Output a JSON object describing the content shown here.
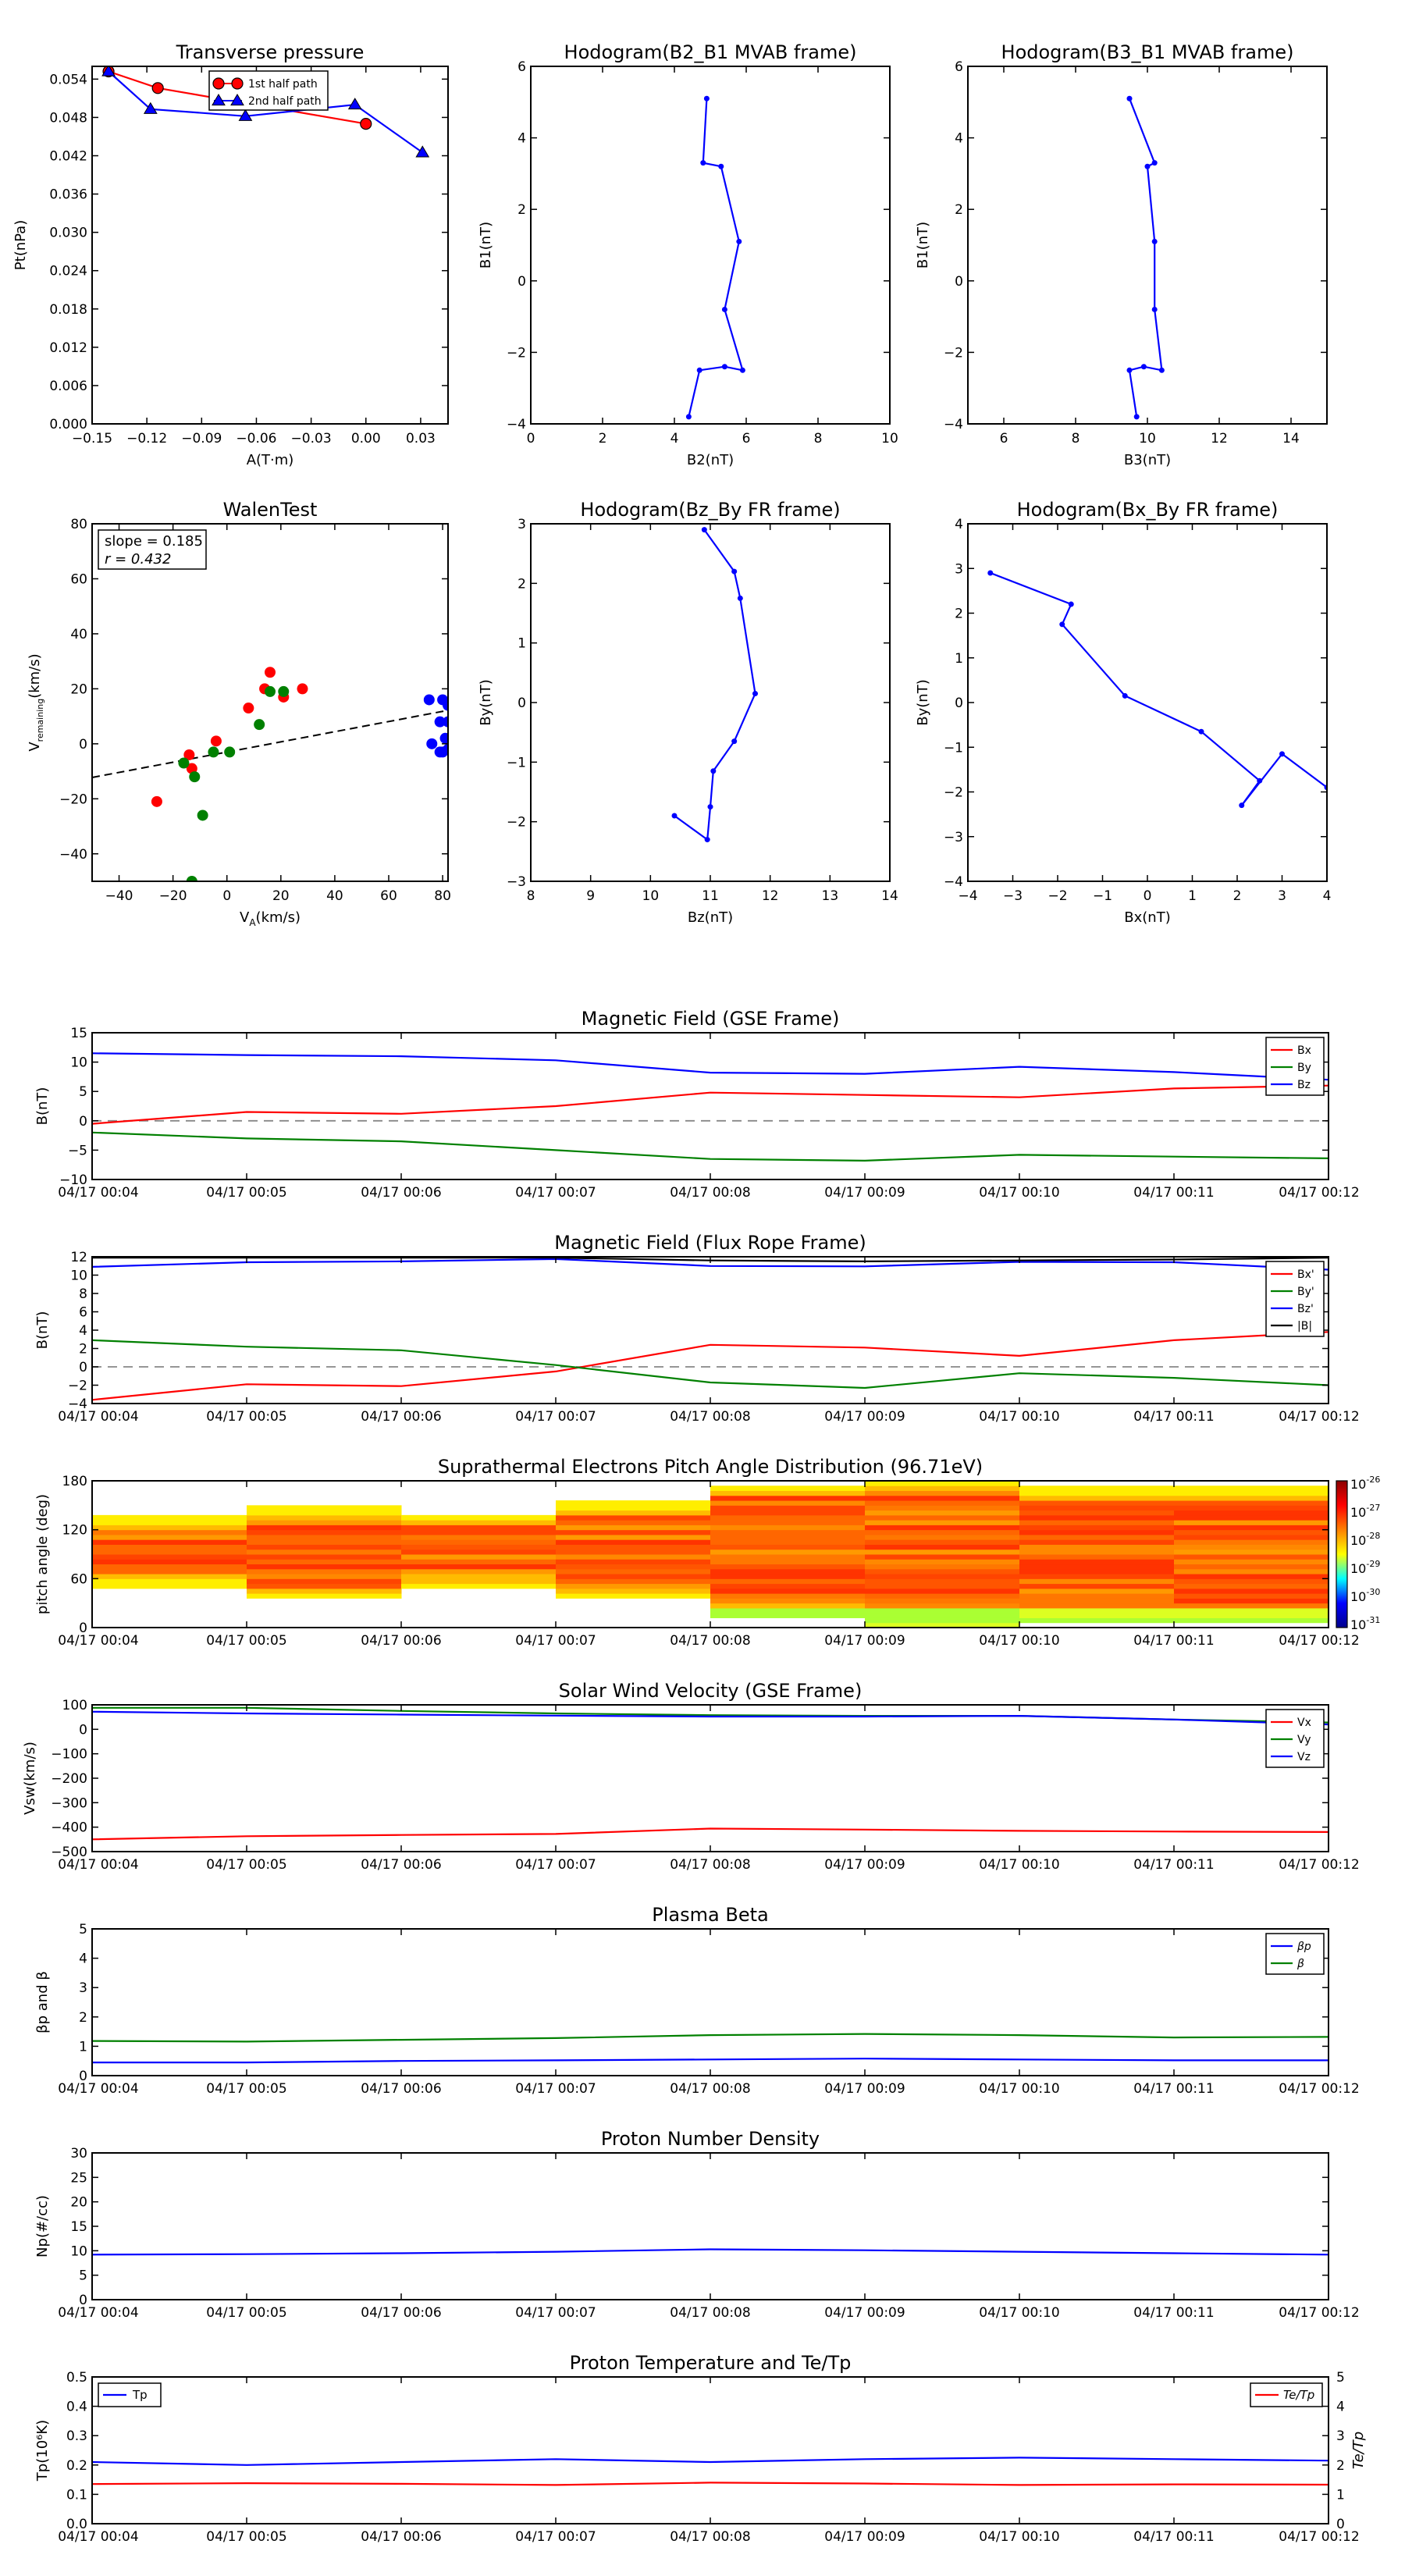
{
  "chart_data": [
    {
      "id": "tp",
      "type": "line",
      "title": "Transverse pressure",
      "xlabel": "A(T·m)",
      "ylabel": "Pt(nPa)",
      "xlim": [
        -0.15,
        0.045
      ],
      "ylim": [
        0.0,
        0.056
      ],
      "xticks": [
        "−0.15",
        "−0.12",
        "−0.09",
        "−0.06",
        "−0.03",
        "0.00",
        "0.03"
      ],
      "xtickvals": [
        -0.15,
        -0.12,
        -0.09,
        -0.06,
        -0.03,
        0.0,
        0.03
      ],
      "yticks": [
        "0.000",
        "0.006",
        "0.012",
        "0.018",
        "0.024",
        "0.030",
        "0.036",
        "0.042",
        "0.048",
        "0.054"
      ],
      "ytickvals": [
        0,
        0.006,
        0.012,
        0.018,
        0.024,
        0.03,
        0.036,
        0.042,
        0.048,
        0.054
      ],
      "legend": [
        "1st half path",
        "2nd half path"
      ],
      "series": [
        {
          "name": "1st half path",
          "color": "#ff0000",
          "marker": "circle",
          "x": [
            -0.141,
            -0.114,
            0.0
          ],
          "y": [
            0.0552,
            0.0526,
            0.047
          ]
        },
        {
          "name": "2nd half path",
          "color": "#0000ff",
          "marker": "triangle",
          "x": [
            -0.141,
            -0.118,
            -0.066,
            -0.006,
            0.031
          ],
          "y": [
            0.0552,
            0.0493,
            0.0482,
            0.05,
            0.0425
          ]
        }
      ]
    },
    {
      "id": "h1",
      "type": "line",
      "title": "Hodogram(B2_B1 MVAB frame)",
      "xlabel": "B2(nT)",
      "ylabel": "B1(nT)",
      "xlim": [
        0,
        10
      ],
      "ylim": [
        -4,
        6
      ],
      "xticks": [
        "0",
        "2",
        "4",
        "6",
        "8",
        "10"
      ],
      "xtickvals": [
        0,
        2,
        4,
        6,
        8,
        10
      ],
      "yticks": [
        "−4",
        "−2",
        "0",
        "2",
        "4",
        "6"
      ],
      "ytickvals": [
        -4,
        -2,
        0,
        2,
        4,
        6
      ],
      "series": [
        {
          "color": "#0000ff",
          "marker": "dot",
          "x": [
            4.9,
            4.8,
            5.3,
            5.8,
            5.4,
            5.9,
            5.4,
            4.7,
            4.4
          ],
          "y": [
            5.1,
            3.3,
            3.2,
            1.1,
            -0.8,
            -2.5,
            -2.4,
            -2.5,
            -3.8
          ]
        }
      ]
    },
    {
      "id": "h2",
      "type": "line",
      "title": "Hodogram(B3_B1 MVAB frame)",
      "xlabel": "B3(nT)",
      "ylabel": "B1(nT)",
      "xlim": [
        5,
        15
      ],
      "ylim": [
        -4,
        6
      ],
      "xticks": [
        "6",
        "8",
        "10",
        "12",
        "14"
      ],
      "xtickvals": [
        6,
        8,
        10,
        12,
        14
      ],
      "yticks": [
        "−4",
        "−2",
        "0",
        "2",
        "4",
        "6"
      ],
      "ytickvals": [
        -4,
        -2,
        0,
        2,
        4,
        6
      ],
      "series": [
        {
          "color": "#0000ff",
          "marker": "dot",
          "x": [
            9.5,
            10.2,
            10.0,
            10.2,
            10.2,
            10.4,
            9.9,
            9.5,
            9.7
          ],
          "y": [
            5.1,
            3.3,
            3.2,
            1.1,
            -0.8,
            -2.5,
            -2.4,
            -2.5,
            -3.8
          ]
        }
      ]
    },
    {
      "id": "walen",
      "type": "scatter",
      "title": "WalenTest",
      "xlabel": "V",
      "xlabel_sub": "A",
      "xlabel_unit": "(km/s)",
      "ylabel": "V",
      "ylabel_sub": "remaining",
      "ylabel_unit": "(km/s)",
      "xlim": [
        -50,
        82
      ],
      "ylim": [
        -50,
        80
      ],
      "xticks": [
        "−40",
        "−20",
        "0",
        "20",
        "40",
        "60",
        "80"
      ],
      "xtickvals": [
        -40,
        -20,
        0,
        20,
        40,
        60,
        80
      ],
      "yticks": [
        "−40",
        "−20",
        "0",
        "20",
        "40",
        "60",
        "80"
      ],
      "ytickvals": [
        -40,
        -20,
        0,
        20,
        40,
        60,
        80
      ],
      "annotation": [
        "slope = 0.185",
        "r = 0.432"
      ],
      "fit": {
        "slope": 0.185,
        "intercept": -3
      },
      "series": [
        {
          "color": "#ff0000",
          "x": [
            -26,
            -14,
            -13,
            -4,
            8,
            14,
            16,
            21,
            28
          ],
          "y": [
            -21,
            -4,
            -9,
            1,
            13,
            20,
            26,
            17,
            20
          ]
        },
        {
          "color": "#008000",
          "x": [
            -16,
            -12,
            -9,
            -5,
            1,
            12,
            16,
            21,
            -13
          ],
          "y": [
            -7,
            -12,
            -26,
            -3,
            -3,
            7,
            19,
            19,
            -50
          ]
        },
        {
          "color": "#0000ff",
          "x": [
            75,
            76,
            79,
            80,
            81,
            80,
            82,
            79,
            82,
            82
          ],
          "y": [
            16,
            0,
            8,
            16,
            2,
            -3,
            -2,
            -3,
            8,
            14
          ]
        }
      ]
    },
    {
      "id": "h3",
      "type": "line",
      "title": "Hodogram(Bz_By FR frame)",
      "xlabel": "Bz(nT)",
      "ylabel": "By(nT)",
      "xlim": [
        8,
        14
      ],
      "ylim": [
        -3,
        3
      ],
      "xticks": [
        "8",
        "9",
        "10",
        "11",
        "12",
        "13",
        "14"
      ],
      "xtickvals": [
        8,
        9,
        10,
        11,
        12,
        13,
        14
      ],
      "yticks": [
        "−3",
        "−2",
        "−1",
        "0",
        "1",
        "2",
        "3"
      ],
      "ytickvals": [
        -3,
        -2,
        -1,
        0,
        1,
        2,
        3
      ],
      "series": [
        {
          "color": "#0000ff",
          "marker": "dot",
          "x": [
            10.9,
            11.4,
            11.5,
            11.75,
            11.4,
            11.05,
            11.0,
            10.95,
            10.4
          ],
          "y": [
            2.9,
            2.2,
            1.75,
            0.15,
            -0.65,
            -1.15,
            -1.75,
            -2.3,
            -1.9
          ]
        }
      ]
    },
    {
      "id": "h4",
      "type": "line",
      "title": "Hodogram(Bx_By FR frame)",
      "xlabel": "Bx(nT)",
      "ylabel": "By(nT)",
      "xlim": [
        -4,
        4
      ],
      "ylim": [
        -4,
        4
      ],
      "xticks": [
        "−4",
        "−3",
        "−2",
        "−1",
        "0",
        "1",
        "2",
        "3",
        "4"
      ],
      "xtickvals": [
        -4,
        -3,
        -2,
        -1,
        0,
        1,
        2,
        3,
        4
      ],
      "yticks": [
        "−4",
        "−3",
        "−2",
        "−1",
        "0",
        "1",
        "2",
        "3",
        "4"
      ],
      "ytickvals": [
        -4,
        -3,
        -2,
        -1,
        0,
        1,
        2,
        3,
        4
      ],
      "series": [
        {
          "color": "#0000ff",
          "marker": "dot",
          "x": [
            -3.5,
            -1.7,
            -1.9,
            -0.5,
            1.2,
            2.5,
            2.1,
            3.0,
            4.0
          ],
          "y": [
            2.9,
            2.2,
            1.75,
            0.15,
            -0.65,
            -1.75,
            -2.3,
            -1.15,
            -1.9
          ]
        }
      ]
    },
    {
      "id": "mag_gse",
      "type": "line",
      "title": "Magnetic Field (GSE Frame)",
      "ylabel": "B(nT)",
      "x": [
        "04/17 00:04",
        "04/17 00:05",
        "04/17 00:06",
        "04/17 00:07",
        "04/17 00:08",
        "04/17 00:09",
        "04/17 00:10",
        "04/17 00:11",
        "04/17 00:12"
      ],
      "ylim": [
        -10,
        15
      ],
      "yticks": [
        "−10",
        "−5",
        "0",
        "5",
        "10",
        "15"
      ],
      "ytickvals": [
        -10,
        -5,
        0,
        5,
        10,
        15
      ],
      "zero_line": true,
      "legend": [
        "Bx",
        "By",
        "Bz"
      ],
      "series": [
        {
          "name": "Bx",
          "color": "#ff0000",
          "values": [
            -0.5,
            1.5,
            1.2,
            2.5,
            4.8,
            4.4,
            4.0,
            5.5,
            6.0
          ]
        },
        {
          "name": "By",
          "color": "#008000",
          "values": [
            -2.0,
            -3.0,
            -3.5,
            -5.0,
            -6.5,
            -6.8,
            -5.8,
            -6.1,
            -6.4
          ]
        },
        {
          "name": "Bz",
          "color": "#0000ff",
          "values": [
            11.5,
            11.2,
            11.0,
            10.3,
            8.2,
            8.0,
            9.2,
            8.3,
            7.0
          ]
        }
      ]
    },
    {
      "id": "mag_fr",
      "type": "line",
      "title": "Magnetic Field (Flux Rope Frame)",
      "ylabel": "B(nT)",
      "x": [
        "04/17 00:04",
        "04/17 00:05",
        "04/17 00:06",
        "04/17 00:07",
        "04/17 00:08",
        "04/17 00:09",
        "04/17 00:10",
        "04/17 00:11",
        "04/17 00:12"
      ],
      "ylim": [
        -4,
        12
      ],
      "yticks": [
        "−4",
        "−2",
        "0",
        "2",
        "4",
        "6",
        "8",
        "10",
        "12"
      ],
      "ytickvals": [
        -4,
        -2,
        0,
        2,
        4,
        6,
        8,
        10,
        12
      ],
      "zero_line": true,
      "legend": [
        "Bx'",
        "By'",
        "Bz'",
        "|B|"
      ],
      "series": [
        {
          "name": "Bx'",
          "color": "#ff0000",
          "values": [
            -3.6,
            -1.9,
            -2.1,
            -0.5,
            2.4,
            2.1,
            1.2,
            2.9,
            3.8
          ]
        },
        {
          "name": "By'",
          "color": "#008000",
          "values": [
            2.9,
            2.2,
            1.8,
            0.2,
            -1.7,
            -2.3,
            -0.7,
            -1.2,
            -2.0
          ]
        },
        {
          "name": "Bz'",
          "color": "#0000ff",
          "values": [
            10.9,
            11.4,
            11.5,
            11.75,
            11.0,
            10.95,
            11.45,
            11.4,
            10.6
          ]
        },
        {
          "name": "|B|",
          "color": "#000000",
          "values": [
            11.9,
            11.9,
            11.9,
            11.9,
            11.6,
            11.5,
            11.6,
            11.7,
            11.9
          ]
        }
      ]
    },
    {
      "id": "pad",
      "type": "heatmap",
      "title": "Suprathermal Electrons Pitch Angle Distribution (96.71eV)",
      "ylabel": "pitch angle (deg)",
      "x": [
        "04/17 00:04",
        "04/17 00:05",
        "04/17 00:06",
        "04/17 00:07",
        "04/17 00:08",
        "04/17 00:09",
        "04/17 00:10",
        "04/17 00:11",
        "04/17 00:12"
      ],
      "ylim": [
        0,
        180
      ],
      "yticks": [
        "0",
        "60",
        "120",
        "180"
      ],
      "ytickvals": [
        0,
        60,
        120,
        180
      ],
      "colorbar_ticks": [
        "10",
        "10",
        "10",
        "10",
        "10",
        "10"
      ],
      "colorbar_exps": [
        "-26",
        "-27",
        "-28",
        "-29",
        "-30",
        "-31"
      ],
      "colorbar_stops": [
        "#8b0000",
        "#ff0000",
        "#ff8000",
        "#ffff00",
        "#00ffff",
        "#0000ff",
        "#00008b"
      ]
    },
    {
      "id": "vsw",
      "type": "line",
      "title": "Solar Wind Velocity (GSE Frame)",
      "ylabel": "Vsw(km/s)",
      "x": [
        "04/17 00:04",
        "04/17 00:05",
        "04/17 00:06",
        "04/17 00:07",
        "04/17 00:08",
        "04/17 00:09",
        "04/17 00:10",
        "04/17 00:11",
        "04/17 00:12"
      ],
      "ylim": [
        -500,
        100
      ],
      "yticks": [
        "−500",
        "−400",
        "−300",
        "−200",
        "−100",
        "0",
        "100"
      ],
      "ytickvals": [
        -500,
        -400,
        -300,
        -200,
        -100,
        0,
        100
      ],
      "legend": [
        "Vx",
        "Vy",
        "Vz"
      ],
      "series": [
        {
          "name": "Vx",
          "color": "#ff0000",
          "values": [
            -450,
            -437,
            -432,
            -428,
            -406,
            -410,
            -415,
            -418,
            -420
          ]
        },
        {
          "name": "Vy",
          "color": "#008000",
          "values": [
            88,
            88,
            75,
            65,
            58,
            55,
            55,
            40,
            28
          ]
        },
        {
          "name": "Vz",
          "color": "#0000ff",
          "values": [
            72,
            65,
            60,
            56,
            52,
            52,
            55,
            40,
            20
          ]
        }
      ]
    },
    {
      "id": "beta",
      "type": "line",
      "title": "Plasma Beta",
      "ylabel": "βp and β",
      "x": [
        "04/17 00:04",
        "04/17 00:05",
        "04/17 00:06",
        "04/17 00:07",
        "04/17 00:08",
        "04/17 00:09",
        "04/17 00:10",
        "04/17 00:11",
        "04/17 00:12"
      ],
      "ylim": [
        0,
        5
      ],
      "yticks": [
        "0",
        "1",
        "2",
        "3",
        "4",
        "5"
      ],
      "ytickvals": [
        0,
        1,
        2,
        3,
        4,
        5
      ],
      "legend": [
        "βp",
        "β"
      ],
      "series": [
        {
          "name": "βp",
          "color": "#0000ff",
          "values": [
            0.45,
            0.45,
            0.5,
            0.52,
            0.55,
            0.58,
            0.55,
            0.52,
            0.52
          ]
        },
        {
          "name": "β",
          "color": "#008000",
          "values": [
            1.18,
            1.16,
            1.22,
            1.28,
            1.38,
            1.42,
            1.38,
            1.3,
            1.32
          ]
        }
      ]
    },
    {
      "id": "np",
      "type": "line",
      "title": "Proton Number Density",
      "ylabel": "Np(#/cc)",
      "x": [
        "04/17 00:04",
        "04/17 00:05",
        "04/17 00:06",
        "04/17 00:07",
        "04/17 00:08",
        "04/17 00:09",
        "04/17 00:10",
        "04/17 00:11",
        "04/17 00:12"
      ],
      "ylim": [
        0,
        30
      ],
      "yticks": [
        "0",
        "5",
        "10",
        "15",
        "20",
        "25",
        "30"
      ],
      "ytickvals": [
        0,
        5,
        10,
        15,
        20,
        25,
        30
      ],
      "series": [
        {
          "color": "#0000ff",
          "values": [
            9.2,
            9.3,
            9.5,
            9.8,
            10.3,
            10.1,
            9.8,
            9.5,
            9.2
          ]
        }
      ]
    },
    {
      "id": "tp2",
      "type": "line",
      "title": "Proton Temperature and Te/Tp",
      "ylabel": "Tp(10⁶K)",
      "ylabel_right": "Te/Tp",
      "x": [
        "04/17 00:04",
        "04/17 00:05",
        "04/17 00:06",
        "04/17 00:07",
        "04/17 00:08",
        "04/17 00:09",
        "04/17 00:10",
        "04/17 00:11",
        "04/17 00:12"
      ],
      "ylim": [
        0,
        0.5
      ],
      "ylim_right": [
        0,
        5
      ],
      "yticks": [
        "0.0",
        "0.1",
        "0.2",
        "0.3",
        "0.4",
        "0.5"
      ],
      "ytickvals": [
        0,
        0.1,
        0.2,
        0.3,
        0.4,
        0.5
      ],
      "yticks_right": [
        "0",
        "1",
        "2",
        "3",
        "4",
        "5"
      ],
      "ytickvals_right": [
        0,
        1,
        2,
        3,
        4,
        5
      ],
      "legend": [
        "Tp",
        "Te/Tp"
      ],
      "series": [
        {
          "name": "Tp",
          "color": "#0000ff",
          "axis": "left",
          "values": [
            0.21,
            0.2,
            0.21,
            0.22,
            0.21,
            0.22,
            0.225,
            0.22,
            0.215
          ]
        },
        {
          "name": "Te/Tp",
          "color": "#ff0000",
          "axis": "right",
          "values": [
            1.35,
            1.38,
            1.36,
            1.32,
            1.4,
            1.37,
            1.32,
            1.34,
            1.33
          ]
        }
      ]
    }
  ]
}
